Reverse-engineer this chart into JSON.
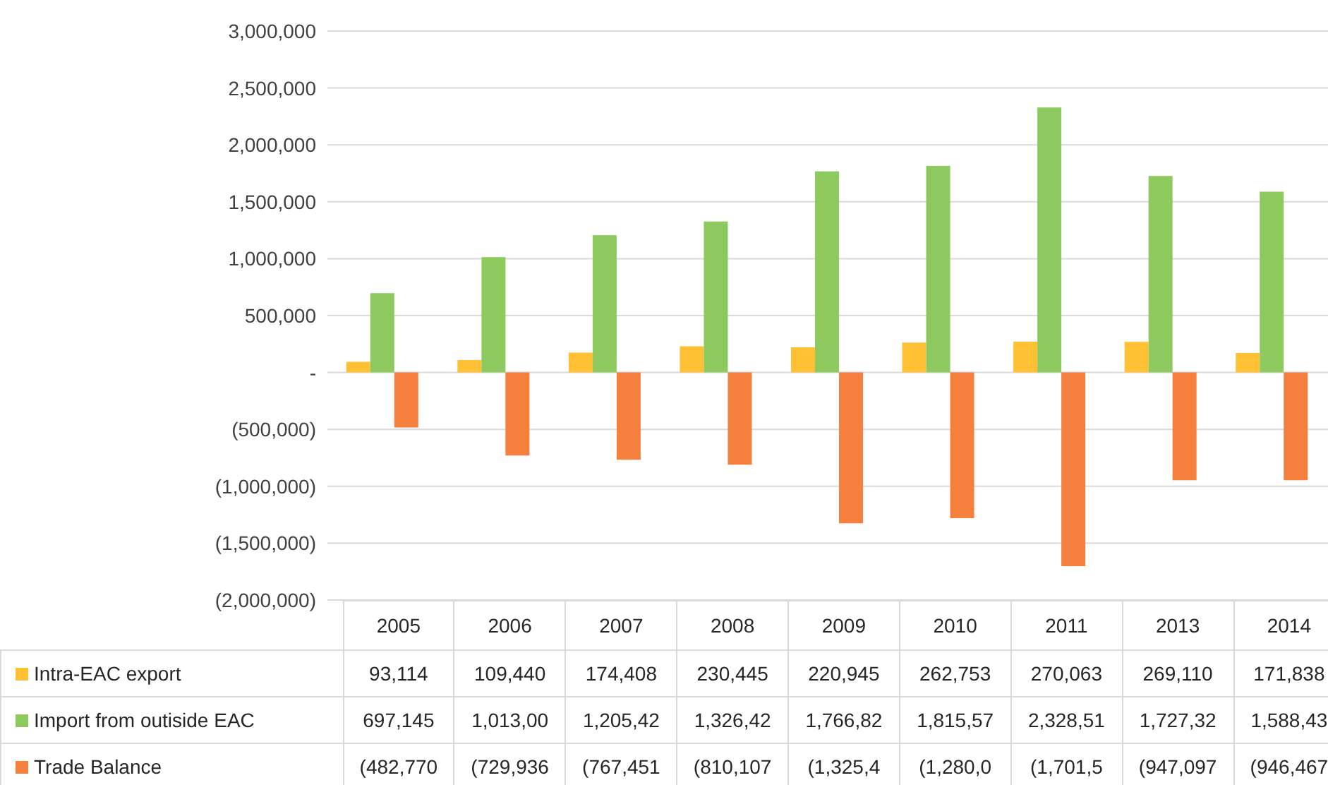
{
  "chart_data": {
    "type": "bar",
    "categories": [
      "2005",
      "2006",
      "2007",
      "2008",
      "2009",
      "2010",
      "2011",
      "2013",
      "2014"
    ],
    "series": [
      {
        "name": "Intra-EAC export",
        "color": "#ffc034",
        "values": [
          93114,
          109440,
          174408,
          230445,
          220945,
          262753,
          270063,
          269110,
          171838
        ],
        "value_labels": [
          "93,114",
          "109,440",
          "174,408",
          "230,445",
          "220,945",
          "262,753",
          "270,063",
          "269,110",
          "171,838"
        ]
      },
      {
        "name": "Import from outiside EAC",
        "color": "#8dc95c",
        "values": [
          697145,
          1013000,
          1205420,
          1326420,
          1766820,
          1815570,
          2328510,
          1727320,
          1588430
        ],
        "value_labels": [
          "697,145",
          "1,013,00",
          "1,205,42",
          "1,326,42",
          "1,766,82",
          "1,815,57",
          "2,328,51",
          "1,727,32",
          "1,588,43"
        ]
      },
      {
        "name": "Trade Balance",
        "color": "#f5803e",
        "values": [
          -482770,
          -729936,
          -767451,
          -810107,
          -1325400,
          -1280000,
          -1701500,
          -947097,
          -946467
        ],
        "value_labels": [
          "(482,770",
          "(729,936",
          "(767,451",
          "(810,107",
          "(1,325,4",
          "(1,280,0",
          "(1,701,5",
          "(947,097",
          "(946,467"
        ]
      }
    ],
    "ylim": [
      -2000000,
      3000000
    ],
    "yticks": [
      {
        "value": -2000000,
        "label": "(2,000,000)"
      },
      {
        "value": -1500000,
        "label": "(1,500,000)"
      },
      {
        "value": -1000000,
        "label": "(1,000,000)"
      },
      {
        "value": -500000,
        "label": "(500,000)"
      },
      {
        "value": 0,
        "label": "-"
      },
      {
        "value": 500000,
        "label": "500,000"
      },
      {
        "value": 1000000,
        "label": "1,000,000"
      },
      {
        "value": 1500000,
        "label": "1,500,000"
      },
      {
        "value": 2000000,
        "label": "2,000,000"
      },
      {
        "value": 2500000,
        "label": "2,500,000"
      },
      {
        "value": 3000000,
        "label": "3,000,000"
      }
    ],
    "grid": "y",
    "legend": "bottom"
  }
}
